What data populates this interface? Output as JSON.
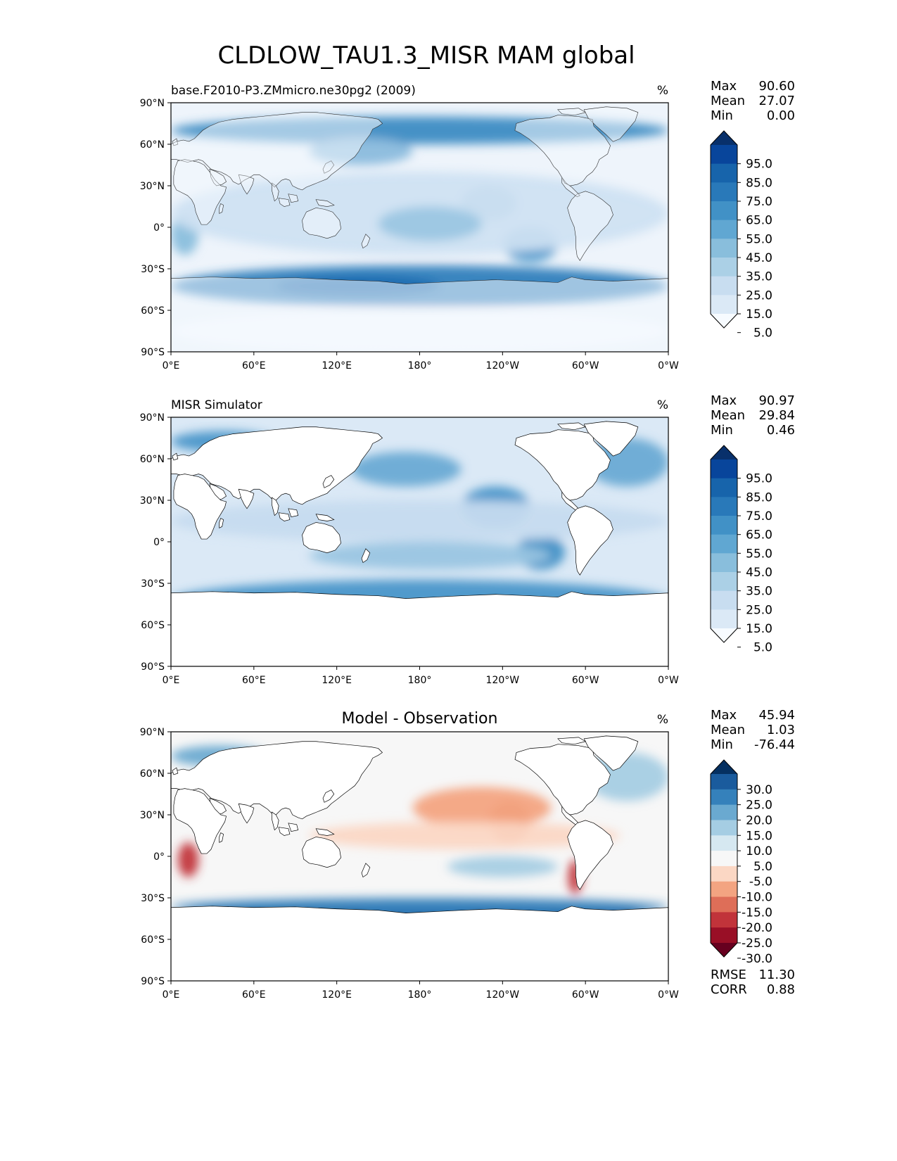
{
  "figure": {
    "title": "CLDLOW_TAU1.3_MISR MAM global"
  },
  "axes": {
    "lat_ticks": [
      "90°N",
      "60°N",
      "30°N",
      "0°",
      "30°S",
      "60°S",
      "90°S"
    ],
    "lon_ticks": [
      "0°E",
      "60°E",
      "120°E",
      "180°",
      "120°W",
      "60°W",
      "0°W"
    ]
  },
  "panels": [
    {
      "id": "model",
      "title_left": "base.F2010-P3.ZMmicro.ne30pg2 (2009)",
      "title_center": "",
      "units": "%",
      "stats": [
        {
          "label": "Max",
          "value": "90.60"
        },
        {
          "label": "Mean",
          "value": "27.07"
        },
        {
          "label": "Min",
          "value": "0.00"
        }
      ],
      "colorbar": {
        "labels": [
          "95.0",
          "85.0",
          "75.0",
          "65.0",
          "55.0",
          "45.0",
          "35.0",
          "25.0",
          "15.0",
          "5.0"
        ],
        "colors": [
          "#08306b",
          "#08459b",
          "#1764ab",
          "#2979b9",
          "#4191c6",
          "#60a7d2",
          "#89bedc",
          "#abd0e6",
          "#c8ddf0",
          "#dbe9f6",
          "#f7fbff"
        ]
      },
      "bottom_stats": []
    },
    {
      "id": "obs",
      "title_left": "MISR Simulator",
      "title_center": "",
      "units": "%",
      "stats": [
        {
          "label": "Max",
          "value": "90.97"
        },
        {
          "label": "Mean",
          "value": "29.84"
        },
        {
          "label": "Min",
          "value": "0.46"
        }
      ],
      "colorbar": {
        "labels": [
          "95.0",
          "85.0",
          "75.0",
          "65.0",
          "55.0",
          "45.0",
          "35.0",
          "25.0",
          "15.0",
          "5.0"
        ],
        "colors": [
          "#08306b",
          "#08459b",
          "#1764ab",
          "#2979b9",
          "#4191c6",
          "#60a7d2",
          "#89bedc",
          "#abd0e6",
          "#c8ddf0",
          "#dbe9f6",
          "#f7fbff"
        ]
      },
      "bottom_stats": []
    },
    {
      "id": "diff",
      "title_left": "",
      "title_center": "Model - Observation",
      "units": "%",
      "stats": [
        {
          "label": "Max",
          "value": "45.94"
        },
        {
          "label": "Mean",
          "value": "1.03"
        },
        {
          "label": "Min",
          "value": "-76.44"
        }
      ],
      "colorbar": {
        "labels": [
          "30.0",
          "25.0",
          "20.0",
          "15.0",
          "10.0",
          "5.0",
          "-5.0",
          "-10.0",
          "-15.0",
          "-20.0",
          "-25.0",
          "-30.0"
        ],
        "colors": [
          "#053061",
          "#1a5b9d",
          "#3581bb",
          "#6aa9d0",
          "#a5cde3",
          "#d6e8f1",
          "#f7f7f7",
          "#fbd7c4",
          "#f3a481",
          "#de6e58",
          "#c1333a",
          "#990f26",
          "#67001f"
        ]
      },
      "bottom_stats": [
        {
          "label": "RMSE",
          "value": "11.30"
        },
        {
          "label": "CORR",
          "value": "0.88"
        }
      ]
    }
  ]
}
